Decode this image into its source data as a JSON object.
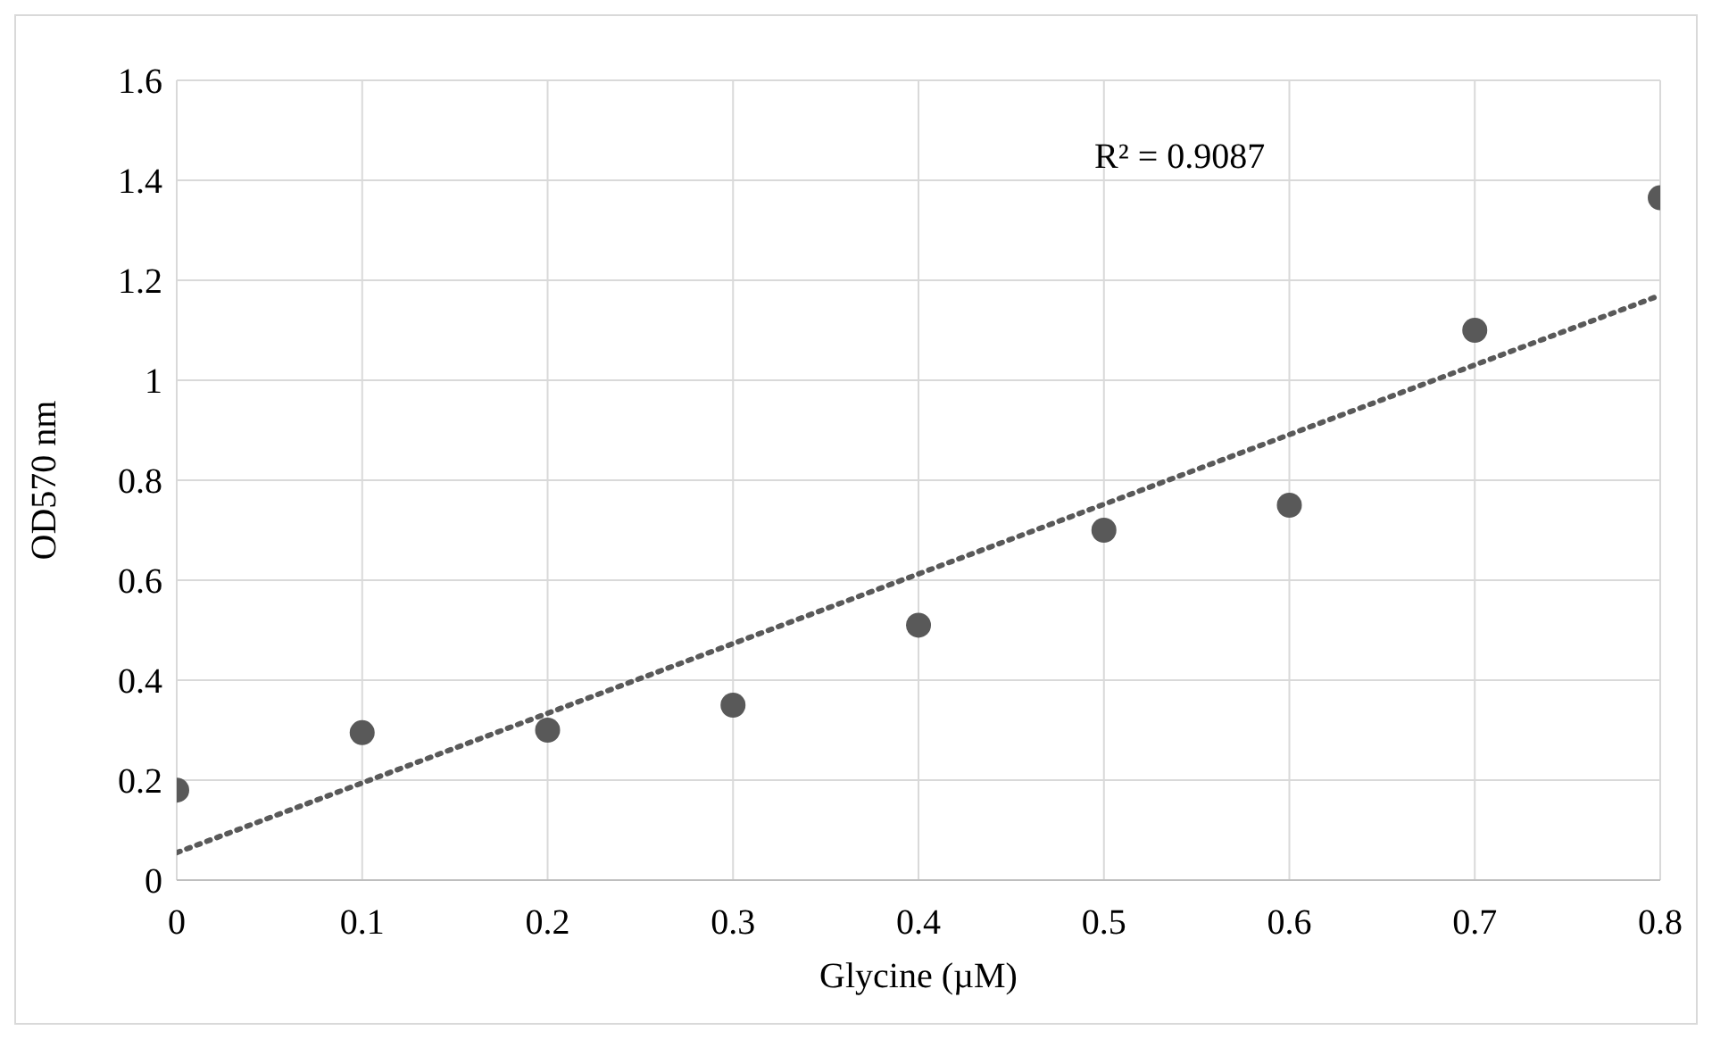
{
  "chart_data": {
    "type": "scatter",
    "xlabel": "Glycine (µM)",
    "ylabel": "OD570 nm",
    "x": [
      0,
      0.1,
      0.2,
      0.3,
      0.4,
      0.5,
      0.6,
      0.7,
      0.8
    ],
    "series": [
      {
        "color": "#595959",
        "marker": "circle",
        "values": [
          0.18,
          0.295,
          0.3,
          0.35,
          0.51,
          0.7,
          0.75,
          1.1,
          1.365
        ]
      },
      {
        "type": "line",
        "color": "#595959",
        "line_style": "dotted",
        "x": [
          0,
          0.8
        ],
        "values": [
          0.055,
          1.17
        ]
      }
    ],
    "annotations": [
      "R² = 0.9087"
    ],
    "xlim": [
      0,
      0.8
    ],
    "xticks": [
      0,
      0.1,
      0.2,
      0.3,
      0.4,
      0.5,
      0.6,
      0.7,
      0.8
    ],
    "ylim": [
      0,
      1.6
    ],
    "yticks": [
      0,
      0.2,
      0.4,
      0.6,
      0.8,
      1,
      1.2,
      1.4,
      1.6
    ],
    "grid": true,
    "legend": false
  }
}
